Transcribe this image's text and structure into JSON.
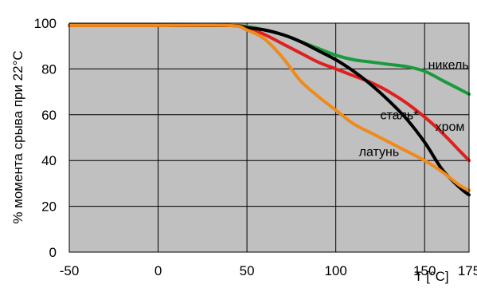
{
  "chart_data": {
    "type": "line",
    "xlabel": "T [°C]",
    "ylabel": "% момента срыва при 22°C",
    "xlim": [
      -50,
      175
    ],
    "ylim": [
      0,
      100
    ],
    "x_ticks": [
      -50,
      0,
      50,
      100,
      150,
      175
    ],
    "y_ticks": [
      0,
      20,
      40,
      60,
      80,
      100
    ],
    "grid": true,
    "legend": "inline labels",
    "plot_background": "#c0c0c0",
    "series": [
      {
        "name": "никель",
        "color": "#1a9a3c",
        "label_at": [
          152,
          80
        ],
        "x": [
          -50,
          0,
          40,
          50,
          60,
          70,
          80,
          90,
          100,
          110,
          120,
          130,
          140,
          150,
          160,
          170,
          175
        ],
        "y": [
          99,
          99,
          99,
          98.5,
          97,
          95,
          92,
          89,
          86,
          84,
          83,
          82,
          81,
          79,
          75,
          71,
          69
        ]
      },
      {
        "name": "хром",
        "color": "#e02020",
        "label_at": [
          156,
          53
        ],
        "x": [
          -50,
          0,
          40,
          50,
          60,
          70,
          80,
          90,
          100,
          110,
          120,
          130,
          140,
          150,
          160,
          170,
          175
        ],
        "y": [
          99,
          99,
          99,
          98,
          95,
          91,
          87,
          83,
          80,
          77,
          74,
          70,
          65,
          59,
          52,
          44,
          40
        ]
      },
      {
        "name": "сталь*",
        "color": "#000000",
        "label_at": [
          125,
          58
        ],
        "x": [
          -50,
          0,
          40,
          50,
          60,
          70,
          80,
          90,
          100,
          110,
          120,
          130,
          140,
          150,
          160,
          170,
          175
        ],
        "y": [
          99,
          99,
          99,
          98,
          97,
          95,
          92,
          88,
          84,
          79,
          73,
          66,
          58,
          48,
          36,
          28,
          25
        ]
      },
      {
        "name": "латунь",
        "color": "#f08a1c",
        "label_at": [
          113,
          42
        ],
        "x": [
          -50,
          0,
          40,
          50,
          60,
          70,
          80,
          90,
          100,
          110,
          120,
          130,
          140,
          150,
          160,
          170,
          175
        ],
        "y": [
          99,
          99,
          99,
          97,
          93,
          85,
          75,
          68,
          62,
          56,
          52,
          48,
          44,
          40,
          35,
          29,
          27
        ]
      }
    ]
  }
}
